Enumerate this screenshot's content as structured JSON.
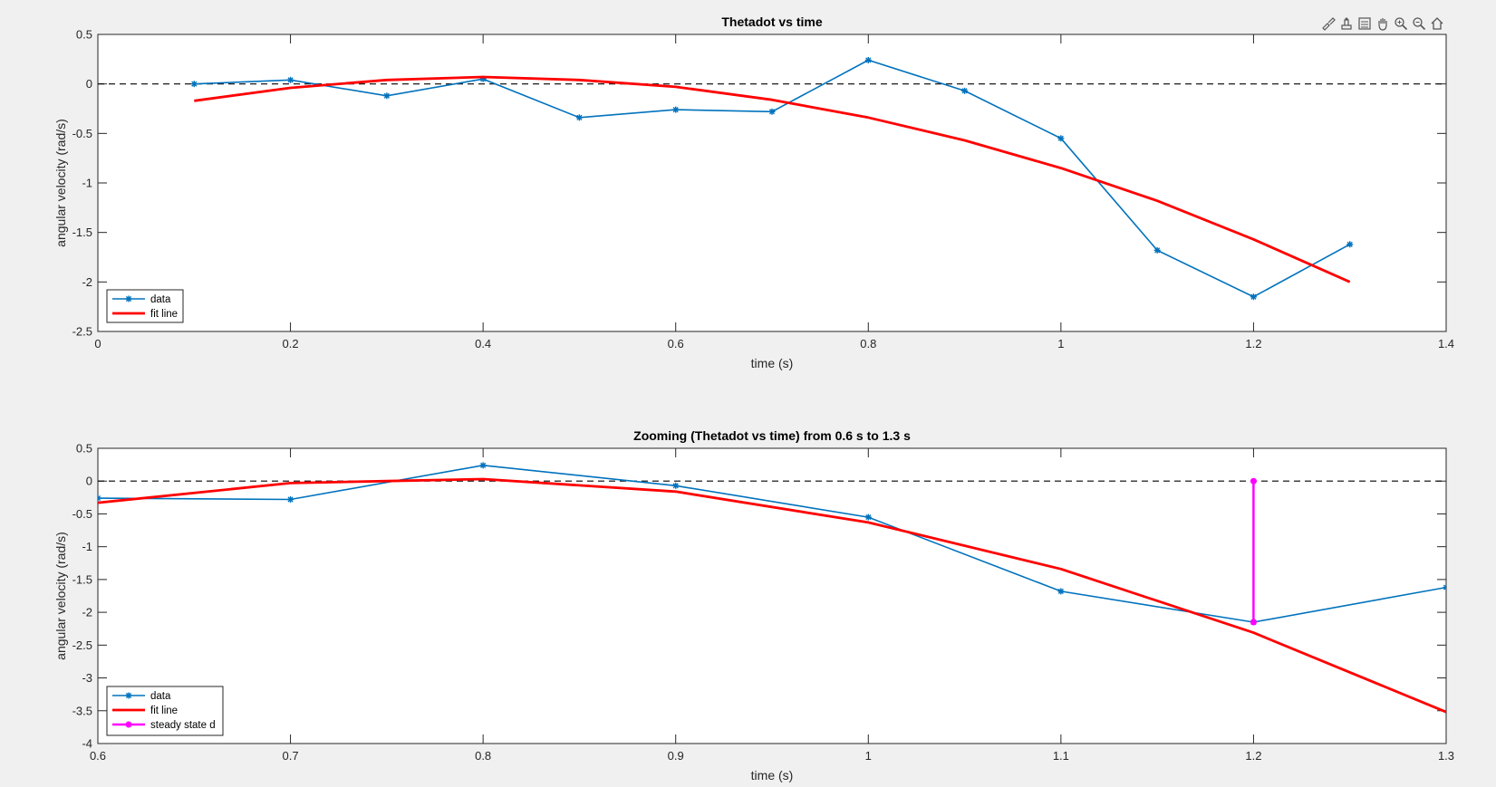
{
  "toolbar": {
    "icons": [
      "brush-icon",
      "data-tips-icon",
      "legend-toggle-icon",
      "pan-icon",
      "zoom-in-icon",
      "zoom-out-icon",
      "home-icon"
    ]
  },
  "colors": {
    "data": "#0072bd",
    "fit": "#ff0000",
    "steady": "#ff00ff",
    "zero_line": "#000000"
  },
  "chart_data": [
    {
      "type": "line",
      "title": "Thetadot vs time",
      "xlabel": "time (s)",
      "ylabel": "angular velocity (rad/s)",
      "xlim": [
        0,
        1.4
      ],
      "ylim": [
        -2.5,
        0.5
      ],
      "xticks": [
        0,
        0.2,
        0.4,
        0.6,
        0.8,
        1,
        1.2,
        1.4
      ],
      "xtick_labels": [
        "0",
        "0.2",
        "0.4",
        "0.6",
        "0.8",
        "1",
        "1.2",
        "1.4"
      ],
      "yticks": [
        0.5,
        0,
        -0.5,
        -1,
        -1.5,
        -2,
        -2.5
      ],
      "ytick_labels": [
        "0.5",
        "0",
        "-0.5",
        "-1",
        "-1.5",
        "-2",
        "-2.5"
      ],
      "legend_position": "bottom-left",
      "series": [
        {
          "name": "data",
          "x": [
            0.1,
            0.2,
            0.3,
            0.4,
            0.5,
            0.6,
            0.7,
            0.8,
            0.9,
            1.0,
            1.1,
            1.2,
            1.3
          ],
          "y": [
            0.0,
            0.04,
            -0.12,
            0.05,
            -0.34,
            -0.26,
            -0.28,
            0.24,
            -0.07,
            -0.55,
            -1.68,
            -2.15,
            -1.62
          ]
        },
        {
          "name": "fit line",
          "x": [
            0.1,
            0.2,
            0.3,
            0.4,
            0.5,
            0.6,
            0.7,
            0.8,
            0.9,
            1.0,
            1.1,
            1.2,
            1.3
          ],
          "y": [
            -0.17,
            -0.04,
            0.04,
            0.07,
            0.04,
            -0.03,
            -0.16,
            -0.34,
            -0.57,
            -0.85,
            -1.18,
            -1.57,
            -2.0
          ]
        }
      ],
      "reference_line_y": 0
    },
    {
      "type": "line",
      "title": "Zooming (Thetadot vs time) from 0.6 s to 1.3 s",
      "xlabel": "time (s)",
      "ylabel": "angular velocity (rad/s)",
      "xlim": [
        0.6,
        1.3
      ],
      "ylim": [
        -4,
        0.5
      ],
      "xticks": [
        0.6,
        0.7,
        0.8,
        0.9,
        1.0,
        1.1,
        1.2,
        1.3
      ],
      "xtick_labels": [
        "0.6",
        "0.7",
        "0.8",
        "0.9",
        "1",
        "1.1",
        "1.2",
        "1.3"
      ],
      "yticks": [
        0.5,
        0,
        -0.5,
        -1,
        -1.5,
        -2,
        -2.5,
        -3,
        -3.5,
        -4
      ],
      "ytick_labels": [
        "0.5",
        "0",
        "-0.5",
        "-1",
        "-1.5",
        "-2",
        "-2.5",
        "-3",
        "-3.5",
        "-4"
      ],
      "legend_position": "bottom-left",
      "series": [
        {
          "name": "data",
          "x": [
            0.6,
            0.7,
            0.8,
            0.9,
            1.0,
            1.1,
            1.2,
            1.3
          ],
          "y": [
            -0.26,
            -0.28,
            0.24,
            -0.07,
            -0.55,
            -1.68,
            -2.15,
            -1.62
          ]
        },
        {
          "name": "fit line",
          "x": [
            0.6,
            0.7,
            0.75,
            0.8,
            0.9,
            1.0,
            1.1,
            1.2,
            1.3
          ],
          "y": [
            -0.33,
            -0.03,
            0.0,
            0.03,
            -0.16,
            -0.63,
            -1.34,
            -2.31,
            -3.52
          ]
        },
        {
          "name": "steady state d",
          "x": [
            1.2,
            1.2
          ],
          "y": [
            0.0,
            -2.15
          ]
        }
      ],
      "reference_line_y": 0
    }
  ]
}
